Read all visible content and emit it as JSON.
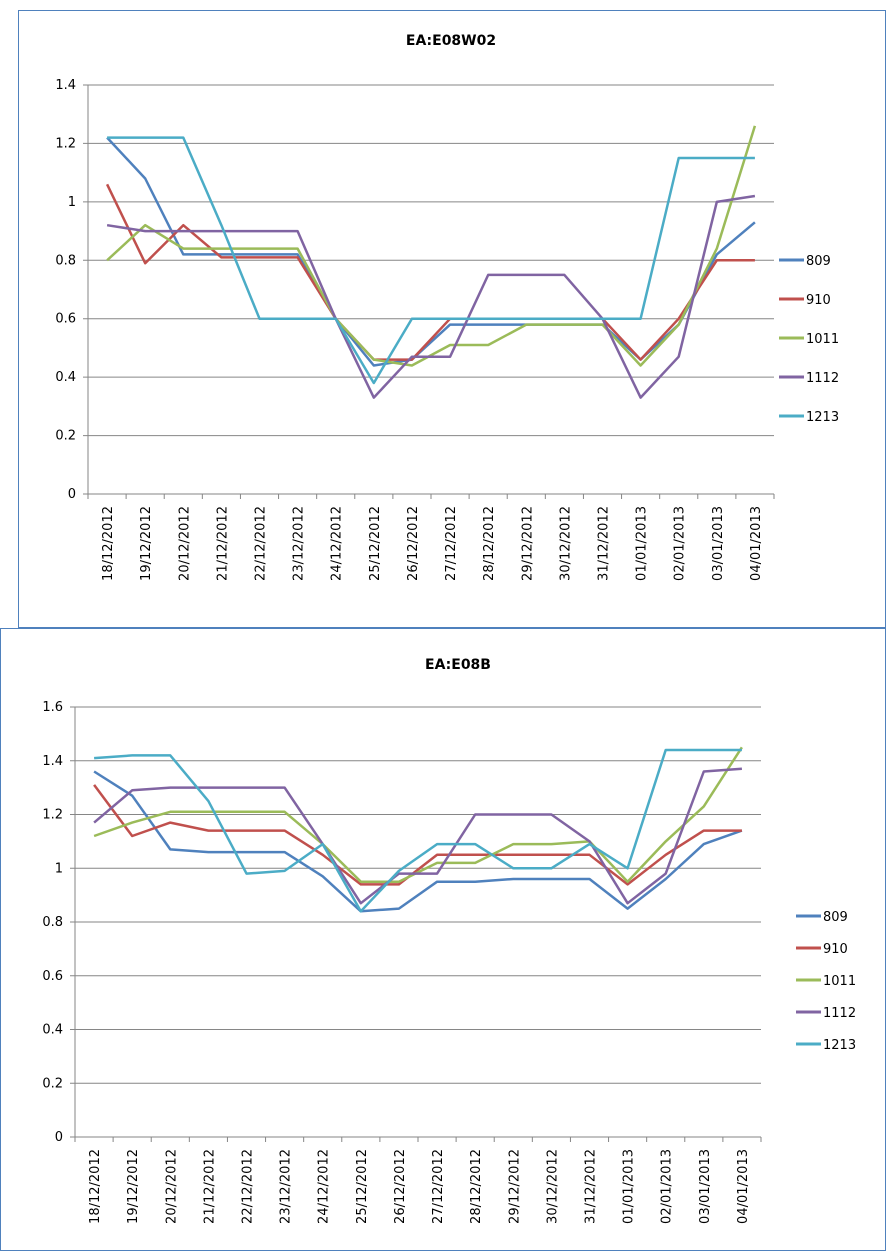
{
  "chart_data": [
    {
      "type": "line",
      "title": "EA:E08W02",
      "xlabel": "",
      "ylabel": "",
      "categories": [
        "18/12/2012",
        "19/12/2012",
        "20/12/2012",
        "21/12/2012",
        "22/12/2012",
        "23/12/2012",
        "24/12/2012",
        "25/12/2012",
        "26/12/2012",
        "27/12/2012",
        "28/12/2012",
        "29/12/2012",
        "30/12/2012",
        "31/12/2012",
        "01/01/2013",
        "02/01/2013",
        "03/01/2013",
        "04/01/2013"
      ],
      "y_ticks": [
        "0",
        "0.2",
        "0.4",
        "0.6",
        "0.8",
        "1",
        "1.2",
        "1.4"
      ],
      "ylim": [
        0,
        1.4
      ],
      "grid": true,
      "legend_position": "right",
      "series": [
        {
          "name": "809",
          "color": "#4f81bd",
          "values": [
            1.22,
            1.08,
            0.82,
            0.82,
            0.82,
            0.82,
            0.6,
            0.44,
            0.46,
            0.58,
            0.58,
            0.58,
            0.58,
            0.58,
            0.46,
            0.58,
            0.82,
            0.93
          ]
        },
        {
          "name": "910",
          "color": "#c0504d",
          "values": [
            1.06,
            0.79,
            0.92,
            0.81,
            0.81,
            0.81,
            0.6,
            0.46,
            0.46,
            0.6,
            0.6,
            0.6,
            0.6,
            0.6,
            0.46,
            0.6,
            0.8,
            0.8
          ]
        },
        {
          "name": "1011",
          "color": "#9bbb59",
          "values": [
            0.8,
            0.92,
            0.84,
            0.84,
            0.84,
            0.84,
            0.6,
            0.46,
            0.44,
            0.51,
            0.51,
            0.58,
            0.58,
            0.58,
            0.44,
            0.58,
            0.84,
            1.26
          ]
        },
        {
          "name": "1112",
          "color": "#8064a2",
          "values": [
            0.92,
            0.9,
            0.9,
            0.9,
            0.9,
            0.9,
            0.6,
            0.33,
            0.47,
            0.47,
            0.75,
            0.75,
            0.75,
            0.6,
            0.33,
            0.47,
            1.0,
            1.02
          ]
        },
        {
          "name": "1213",
          "color": "#4bacc6",
          "values": [
            1.22,
            1.22,
            1.22,
            0.92,
            0.6,
            0.6,
            0.6,
            0.38,
            0.6,
            0.6,
            0.6,
            0.6,
            0.6,
            0.6,
            0.6,
            1.15,
            1.15,
            1.15
          ]
        }
      ]
    },
    {
      "type": "line",
      "title": "EA:E08B",
      "xlabel": "",
      "ylabel": "",
      "categories": [
        "18/12/2012",
        "19/12/2012",
        "20/12/2012",
        "21/12/2012",
        "22/12/2012",
        "23/12/2012",
        "24/12/2012",
        "25/12/2012",
        "26/12/2012",
        "27/12/2012",
        "28/12/2012",
        "29/12/2012",
        "30/12/2012",
        "31/12/2012",
        "01/01/2013",
        "02/01/2013",
        "03/01/2013",
        "04/01/2013"
      ],
      "y_ticks": [
        "0",
        "0.2",
        "0.4",
        "0.6",
        "0.8",
        "1",
        "1.2",
        "1.4",
        "1.6"
      ],
      "ylim": [
        0,
        1.6
      ],
      "grid": true,
      "legend_position": "right",
      "legend_labels": [
        "809",
        "910",
        "1011",
        "1112",
        "1213"
      ],
      "series": [
        {
          "name": "809",
          "color": "#4f81bd",
          "values": [
            1.36,
            1.27,
            1.07,
            1.06,
            1.06,
            1.06,
            0.97,
            0.84,
            0.85,
            0.95,
            0.95,
            0.96,
            0.96,
            0.96,
            0.85,
            0.96,
            1.09,
            1.14
          ]
        },
        {
          "name": "910",
          "color": "#c0504d",
          "values": [
            1.31,
            1.12,
            1.17,
            1.14,
            1.14,
            1.14,
            1.05,
            0.94,
            0.94,
            1.05,
            1.05,
            1.05,
            1.05,
            1.05,
            0.94,
            1.05,
            1.14,
            1.14
          ]
        },
        {
          "name": "1011",
          "color": "#9bbb59",
          "values": [
            1.12,
            1.17,
            1.21,
            1.21,
            1.21,
            1.21,
            1.09,
            0.95,
            0.95,
            1.02,
            1.02,
            1.09,
            1.09,
            1.1,
            0.95,
            1.1,
            1.23,
            1.45
          ]
        },
        {
          "name": "1112",
          "color": "#8064a2",
          "values": [
            1.17,
            1.29,
            1.3,
            1.3,
            1.3,
            1.3,
            1.09,
            0.87,
            0.98,
            0.98,
            1.2,
            1.2,
            1.2,
            1.1,
            0.87,
            0.98,
            1.36,
            1.37
          ]
        },
        {
          "name": "1213",
          "color": "#4bacc6",
          "values": [
            1.41,
            1.42,
            1.42,
            1.25,
            0.98,
            0.99,
            1.09,
            0.84,
            0.99,
            1.09,
            1.09,
            1.0,
            1.0,
            1.09,
            1.0,
            1.44,
            1.44,
            1.44
          ]
        }
      ]
    }
  ]
}
